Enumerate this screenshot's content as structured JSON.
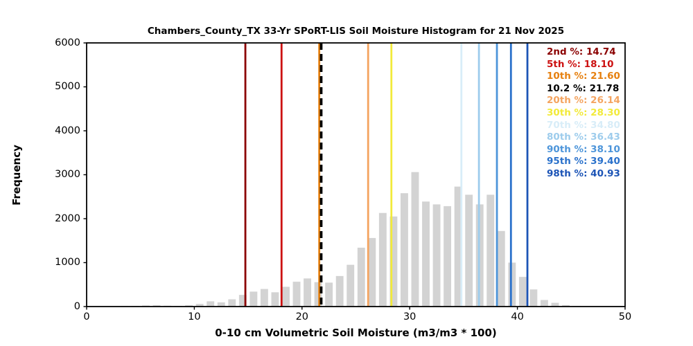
{
  "figure": {
    "title": "Chambers_County_TX 33-Yr SPoRT-LIS Soil Moisture Histogram for 21 Nov 2025",
    "x_axis_label": "0-10 cm Volumetric Soil Moisture (m3/m3 * 100)",
    "y_axis_label": "Frequency"
  },
  "chart_data": {
    "type": "bar",
    "subtype": "histogram",
    "title": "Chambers_County_TX 33-Yr SPoRT-LIS Soil Moisture Histogram for 21 Nov 2025",
    "xlabel": "0-10 cm Volumetric Soil Moisture (m3/m3 * 100)",
    "ylabel": "Frequency",
    "xlim": [
      0,
      50
    ],
    "ylim": [
      0,
      6000
    ],
    "x_ticks": [
      0,
      10,
      20,
      30,
      40,
      50
    ],
    "y_ticks": [
      0,
      1000,
      2000,
      3000,
      4000,
      5000,
      6000
    ],
    "grid": false,
    "legend_position": "upper right inside plot",
    "bar_color": "#d3d3d3",
    "bar_rel_width": 0.7,
    "bin_width": 1,
    "bin_left_edges": [
      0,
      1,
      2,
      3,
      4,
      5,
      6,
      7,
      8,
      9,
      10,
      11,
      12,
      13,
      14,
      15,
      16,
      17,
      18,
      19,
      20,
      21,
      22,
      23,
      24,
      25,
      26,
      27,
      28,
      29,
      30,
      31,
      32,
      33,
      34,
      35,
      36,
      37,
      38,
      39,
      40,
      41,
      42,
      43,
      44,
      45,
      46,
      47,
      48,
      49
    ],
    "frequencies": [
      0,
      0,
      0,
      10,
      15,
      25,
      30,
      20,
      15,
      30,
      60,
      120,
      95,
      165,
      265,
      340,
      400,
      325,
      450,
      565,
      640,
      555,
      545,
      695,
      950,
      1340,
      1560,
      2130,
      2050,
      2580,
      3060,
      2390,
      2325,
      2285,
      2730,
      2545,
      2325,
      2545,
      1720,
      1000,
      675,
      390,
      150,
      85,
      35,
      15,
      0,
      0,
      0,
      0
    ],
    "percentiles": [
      {
        "label": "2nd %",
        "value": 14.74,
        "text": "2nd %: 14.74",
        "color": "#8b0000",
        "style": "solid"
      },
      {
        "label": "5th %",
        "value": 18.1,
        "text": "5th %: 18.10",
        "color": "#cc1111",
        "style": "solid"
      },
      {
        "label": "10th %",
        "value": 21.6,
        "text": "10th %: 21.60",
        "color": "#e6800f",
        "style": "solid"
      },
      {
        "label": "10.2 %",
        "value": 21.78,
        "text": "10.2 %: 21.78",
        "color": "#000000",
        "style": "dashed"
      },
      {
        "label": "20th %",
        "value": 26.14,
        "text": "20th %: 26.14",
        "color": "#f4a460",
        "style": "solid"
      },
      {
        "label": "30th %",
        "value": 28.3,
        "text": "30th %: 28.30",
        "color": "#f2ea3a",
        "style": "solid"
      },
      {
        "label": "70th %",
        "value": 34.8,
        "text": "70th %: 34.80",
        "color": "#d8edf8",
        "style": "solid"
      },
      {
        "label": "80th %",
        "value": 36.43,
        "text": "80th %: 36.43",
        "color": "#9dccec",
        "style": "solid"
      },
      {
        "label": "90th %",
        "value": 38.1,
        "text": "90th %: 38.10",
        "color": "#4d95da",
        "style": "solid"
      },
      {
        "label": "95th %",
        "value": 39.4,
        "text": "95th %: 39.40",
        "color": "#2a71cb",
        "style": "solid"
      },
      {
        "label": "98th %",
        "value": 40.93,
        "text": "98th %: 40.93",
        "color": "#1c54b6",
        "style": "solid"
      }
    ]
  }
}
